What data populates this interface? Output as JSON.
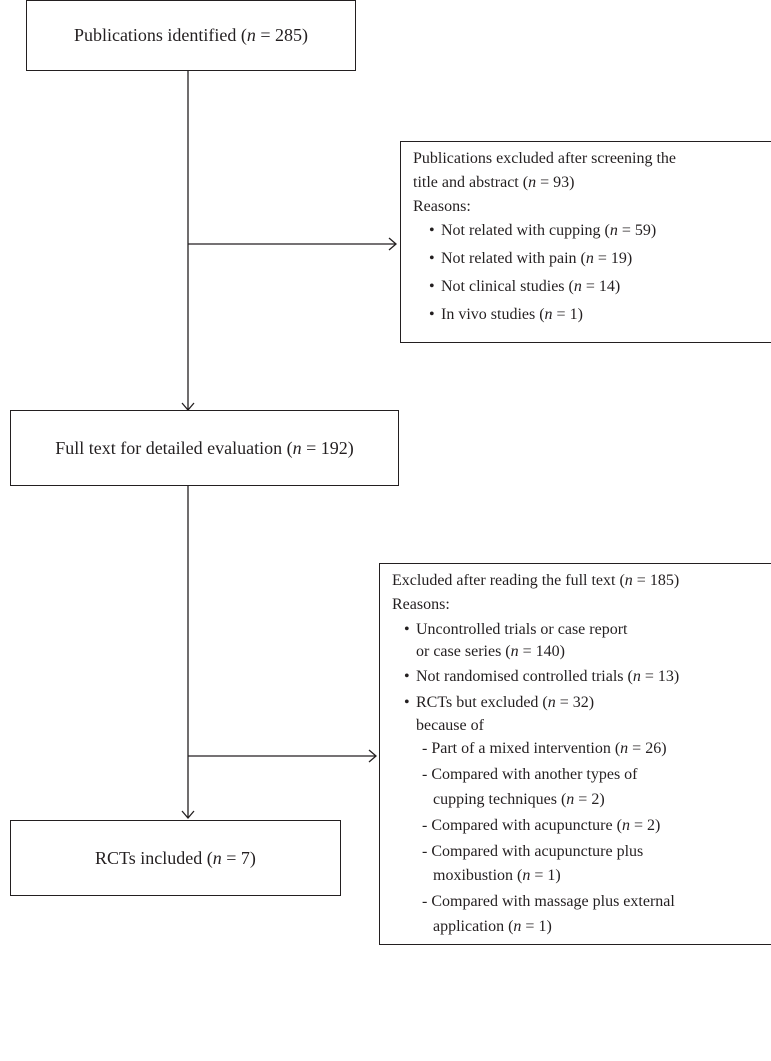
{
  "boxes": {
    "identified": {
      "pre": "Publications identified (",
      "n": "n",
      "post": " = 285)"
    },
    "full_text": {
      "pre": "Full text for detailed evaluation (",
      "n": "n",
      "post": " = 192)"
    },
    "included": {
      "pre": "RCTs included (",
      "n": "n",
      "post": " = 7)"
    }
  },
  "excluded_screening": {
    "heading_line1": "Publications excluded after screening the",
    "heading_line2_pre": "title and abstract (",
    "heading_line2_n": "n",
    "heading_line2_post": " = 93)",
    "reasons_label": "Reasons:",
    "items": [
      {
        "pre": "Not related with cupping (",
        "n": "n",
        "post": " = 59)"
      },
      {
        "pre": "Not related with pain (",
        "n": "n",
        "post": " = 19)"
      },
      {
        "pre": "Not clinical studies (",
        "n": "n",
        "post": " = 14)"
      },
      {
        "pre": "In vivo studies (",
        "n": "n",
        "post": " = 1)"
      }
    ]
  },
  "excluded_fulltext": {
    "heading_pre": "Excluded after reading the full text (",
    "heading_n": "n",
    "heading_post": " = 185)",
    "reasons_label": "Reasons:",
    "item1_line1": "Uncontrolled trials or case report",
    "item1_line2_pre": "or case series (",
    "item1_line2_n": "n",
    "item1_line2_post": " = 140)",
    "item2": {
      "pre": "Not randomised controlled trials (",
      "n": "n",
      "post": " = 13)"
    },
    "item3": {
      "pre": "RCTs but excluded (",
      "n": "n",
      "post": " = 32)"
    },
    "because_of": "because of",
    "sub_items": [
      {
        "line1_pre": "- Part of a mixed intervention (",
        "line1_n": "n",
        "line1_post": " = 26)"
      },
      {
        "line1": "- Compared with another types of",
        "line2_pre": "cupping techniques (",
        "line2_n": "n",
        "line2_post": " = 2)"
      },
      {
        "line1_pre": "- Compared with acupuncture (",
        "line1_n": "n",
        "line1_post": " = 2)"
      },
      {
        "line1": "- Compared with acupuncture plus",
        "line2_pre": "moxibustion (",
        "line2_n": "n",
        "line2_post": " = 1)"
      },
      {
        "line1": "- Compared with massage plus external",
        "line2_pre": "application (",
        "line2_n": "n",
        "line2_post": " = 1)"
      }
    ]
  }
}
